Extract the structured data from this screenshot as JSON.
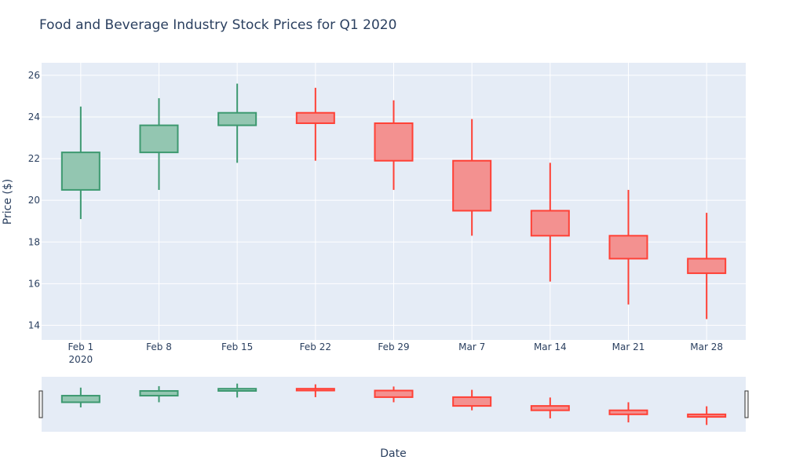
{
  "chart_data": {
    "type": "candlestick",
    "title": "Food and Beverage Industry Stock Prices for Q1 2020",
    "xlabel": "Date",
    "ylabel": "Price ($)",
    "categories": [
      "Feb 1",
      "Feb 8",
      "Feb 15",
      "Feb 22",
      "Feb 29",
      "Mar 7",
      "Mar 14",
      "Mar 21",
      "Mar 28"
    ],
    "x_year_label": "2020",
    "ylim": [
      13.3,
      26.6
    ],
    "y_ticks": [
      14,
      16,
      18,
      20,
      22,
      24,
      26
    ],
    "ohlc": [
      {
        "date": "Feb 1",
        "open": 20.5,
        "high": 24.5,
        "low": 19.1,
        "close": 22.3
      },
      {
        "date": "Feb 8",
        "open": 22.3,
        "high": 24.9,
        "low": 20.5,
        "close": 23.6
      },
      {
        "date": "Feb 15",
        "open": 23.6,
        "high": 25.6,
        "low": 21.8,
        "close": 24.2
      },
      {
        "date": "Feb 22",
        "open": 24.2,
        "high": 25.4,
        "low": 21.9,
        "close": 23.7
      },
      {
        "date": "Feb 29",
        "open": 23.7,
        "high": 24.8,
        "low": 20.5,
        "close": 21.9
      },
      {
        "date": "Mar 7",
        "open": 21.9,
        "high": 23.9,
        "low": 18.3,
        "close": 19.5
      },
      {
        "date": "Mar 14",
        "open": 19.5,
        "high": 21.8,
        "low": 16.1,
        "close": 18.3
      },
      {
        "date": "Mar 21",
        "open": 18.3,
        "high": 20.5,
        "low": 15.0,
        "close": 17.2
      },
      {
        "date": "Mar 28",
        "open": 17.2,
        "high": 19.4,
        "low": 14.3,
        "close": 16.5
      }
    ],
    "range_slider": true,
    "grid": true
  },
  "colors": {
    "plot_bg": "#e5ecf6",
    "grid": "#ffffff",
    "increasing_line": "#3d9970",
    "increasing_fill": "#93c6b1",
    "decreasing_line": "#ff4136",
    "decreasing_fill": "#f39190",
    "text": "#2a3f5f"
  }
}
